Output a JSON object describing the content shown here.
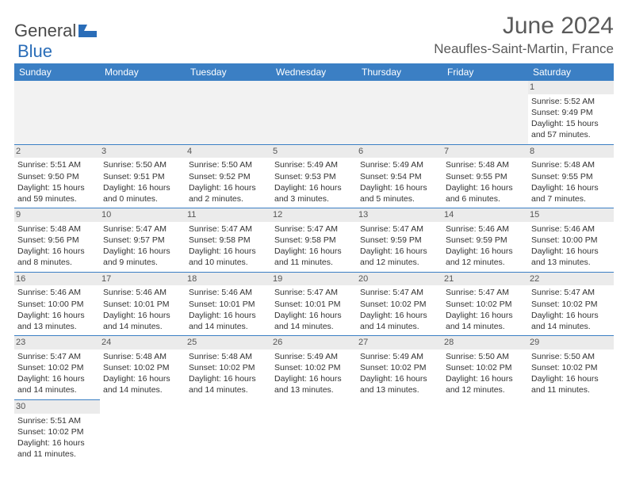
{
  "logo": {
    "textGray": "General",
    "textBlue": "Blue"
  },
  "title": "June 2024",
  "location": "Neaufles-Saint-Martin, France",
  "headers": [
    "Sunday",
    "Monday",
    "Tuesday",
    "Wednesday",
    "Thursday",
    "Friday",
    "Saturday"
  ],
  "colors": {
    "headerBg": "#3b7fc4",
    "rowBorder": "#3b7fc4",
    "dayNumBg": "#ebebeb"
  },
  "weeks": [
    [
      null,
      null,
      null,
      null,
      null,
      null,
      {
        "n": "1",
        "sr": "Sunrise: 5:52 AM",
        "ss": "Sunset: 9:49 PM",
        "d1": "Daylight: 15 hours",
        "d2": "and 57 minutes."
      }
    ],
    [
      {
        "n": "2",
        "sr": "Sunrise: 5:51 AM",
        "ss": "Sunset: 9:50 PM",
        "d1": "Daylight: 15 hours",
        "d2": "and 59 minutes."
      },
      {
        "n": "3",
        "sr": "Sunrise: 5:50 AM",
        "ss": "Sunset: 9:51 PM",
        "d1": "Daylight: 16 hours",
        "d2": "and 0 minutes."
      },
      {
        "n": "4",
        "sr": "Sunrise: 5:50 AM",
        "ss": "Sunset: 9:52 PM",
        "d1": "Daylight: 16 hours",
        "d2": "and 2 minutes."
      },
      {
        "n": "5",
        "sr": "Sunrise: 5:49 AM",
        "ss": "Sunset: 9:53 PM",
        "d1": "Daylight: 16 hours",
        "d2": "and 3 minutes."
      },
      {
        "n": "6",
        "sr": "Sunrise: 5:49 AM",
        "ss": "Sunset: 9:54 PM",
        "d1": "Daylight: 16 hours",
        "d2": "and 5 minutes."
      },
      {
        "n": "7",
        "sr": "Sunrise: 5:48 AM",
        "ss": "Sunset: 9:55 PM",
        "d1": "Daylight: 16 hours",
        "d2": "and 6 minutes."
      },
      {
        "n": "8",
        "sr": "Sunrise: 5:48 AM",
        "ss": "Sunset: 9:55 PM",
        "d1": "Daylight: 16 hours",
        "d2": "and 7 minutes."
      }
    ],
    [
      {
        "n": "9",
        "sr": "Sunrise: 5:48 AM",
        "ss": "Sunset: 9:56 PM",
        "d1": "Daylight: 16 hours",
        "d2": "and 8 minutes."
      },
      {
        "n": "10",
        "sr": "Sunrise: 5:47 AM",
        "ss": "Sunset: 9:57 PM",
        "d1": "Daylight: 16 hours",
        "d2": "and 9 minutes."
      },
      {
        "n": "11",
        "sr": "Sunrise: 5:47 AM",
        "ss": "Sunset: 9:58 PM",
        "d1": "Daylight: 16 hours",
        "d2": "and 10 minutes."
      },
      {
        "n": "12",
        "sr": "Sunrise: 5:47 AM",
        "ss": "Sunset: 9:58 PM",
        "d1": "Daylight: 16 hours",
        "d2": "and 11 minutes."
      },
      {
        "n": "13",
        "sr": "Sunrise: 5:47 AM",
        "ss": "Sunset: 9:59 PM",
        "d1": "Daylight: 16 hours",
        "d2": "and 12 minutes."
      },
      {
        "n": "14",
        "sr": "Sunrise: 5:46 AM",
        "ss": "Sunset: 9:59 PM",
        "d1": "Daylight: 16 hours",
        "d2": "and 12 minutes."
      },
      {
        "n": "15",
        "sr": "Sunrise: 5:46 AM",
        "ss": "Sunset: 10:00 PM",
        "d1": "Daylight: 16 hours",
        "d2": "and 13 minutes."
      }
    ],
    [
      {
        "n": "16",
        "sr": "Sunrise: 5:46 AM",
        "ss": "Sunset: 10:00 PM",
        "d1": "Daylight: 16 hours",
        "d2": "and 13 minutes."
      },
      {
        "n": "17",
        "sr": "Sunrise: 5:46 AM",
        "ss": "Sunset: 10:01 PM",
        "d1": "Daylight: 16 hours",
        "d2": "and 14 minutes."
      },
      {
        "n": "18",
        "sr": "Sunrise: 5:46 AM",
        "ss": "Sunset: 10:01 PM",
        "d1": "Daylight: 16 hours",
        "d2": "and 14 minutes."
      },
      {
        "n": "19",
        "sr": "Sunrise: 5:47 AM",
        "ss": "Sunset: 10:01 PM",
        "d1": "Daylight: 16 hours",
        "d2": "and 14 minutes."
      },
      {
        "n": "20",
        "sr": "Sunrise: 5:47 AM",
        "ss": "Sunset: 10:02 PM",
        "d1": "Daylight: 16 hours",
        "d2": "and 14 minutes."
      },
      {
        "n": "21",
        "sr": "Sunrise: 5:47 AM",
        "ss": "Sunset: 10:02 PM",
        "d1": "Daylight: 16 hours",
        "d2": "and 14 minutes."
      },
      {
        "n": "22",
        "sr": "Sunrise: 5:47 AM",
        "ss": "Sunset: 10:02 PM",
        "d1": "Daylight: 16 hours",
        "d2": "and 14 minutes."
      }
    ],
    [
      {
        "n": "23",
        "sr": "Sunrise: 5:47 AM",
        "ss": "Sunset: 10:02 PM",
        "d1": "Daylight: 16 hours",
        "d2": "and 14 minutes."
      },
      {
        "n": "24",
        "sr": "Sunrise: 5:48 AM",
        "ss": "Sunset: 10:02 PM",
        "d1": "Daylight: 16 hours",
        "d2": "and 14 minutes."
      },
      {
        "n": "25",
        "sr": "Sunrise: 5:48 AM",
        "ss": "Sunset: 10:02 PM",
        "d1": "Daylight: 16 hours",
        "d2": "and 14 minutes."
      },
      {
        "n": "26",
        "sr": "Sunrise: 5:49 AM",
        "ss": "Sunset: 10:02 PM",
        "d1": "Daylight: 16 hours",
        "d2": "and 13 minutes."
      },
      {
        "n": "27",
        "sr": "Sunrise: 5:49 AM",
        "ss": "Sunset: 10:02 PM",
        "d1": "Daylight: 16 hours",
        "d2": "and 13 minutes."
      },
      {
        "n": "28",
        "sr": "Sunrise: 5:50 AM",
        "ss": "Sunset: 10:02 PM",
        "d1": "Daylight: 16 hours",
        "d2": "and 12 minutes."
      },
      {
        "n": "29",
        "sr": "Sunrise: 5:50 AM",
        "ss": "Sunset: 10:02 PM",
        "d1": "Daylight: 16 hours",
        "d2": "and 11 minutes."
      }
    ],
    [
      {
        "n": "30",
        "sr": "Sunrise: 5:51 AM",
        "ss": "Sunset: 10:02 PM",
        "d1": "Daylight: 16 hours",
        "d2": "and 11 minutes."
      },
      null,
      null,
      null,
      null,
      null,
      null
    ]
  ]
}
